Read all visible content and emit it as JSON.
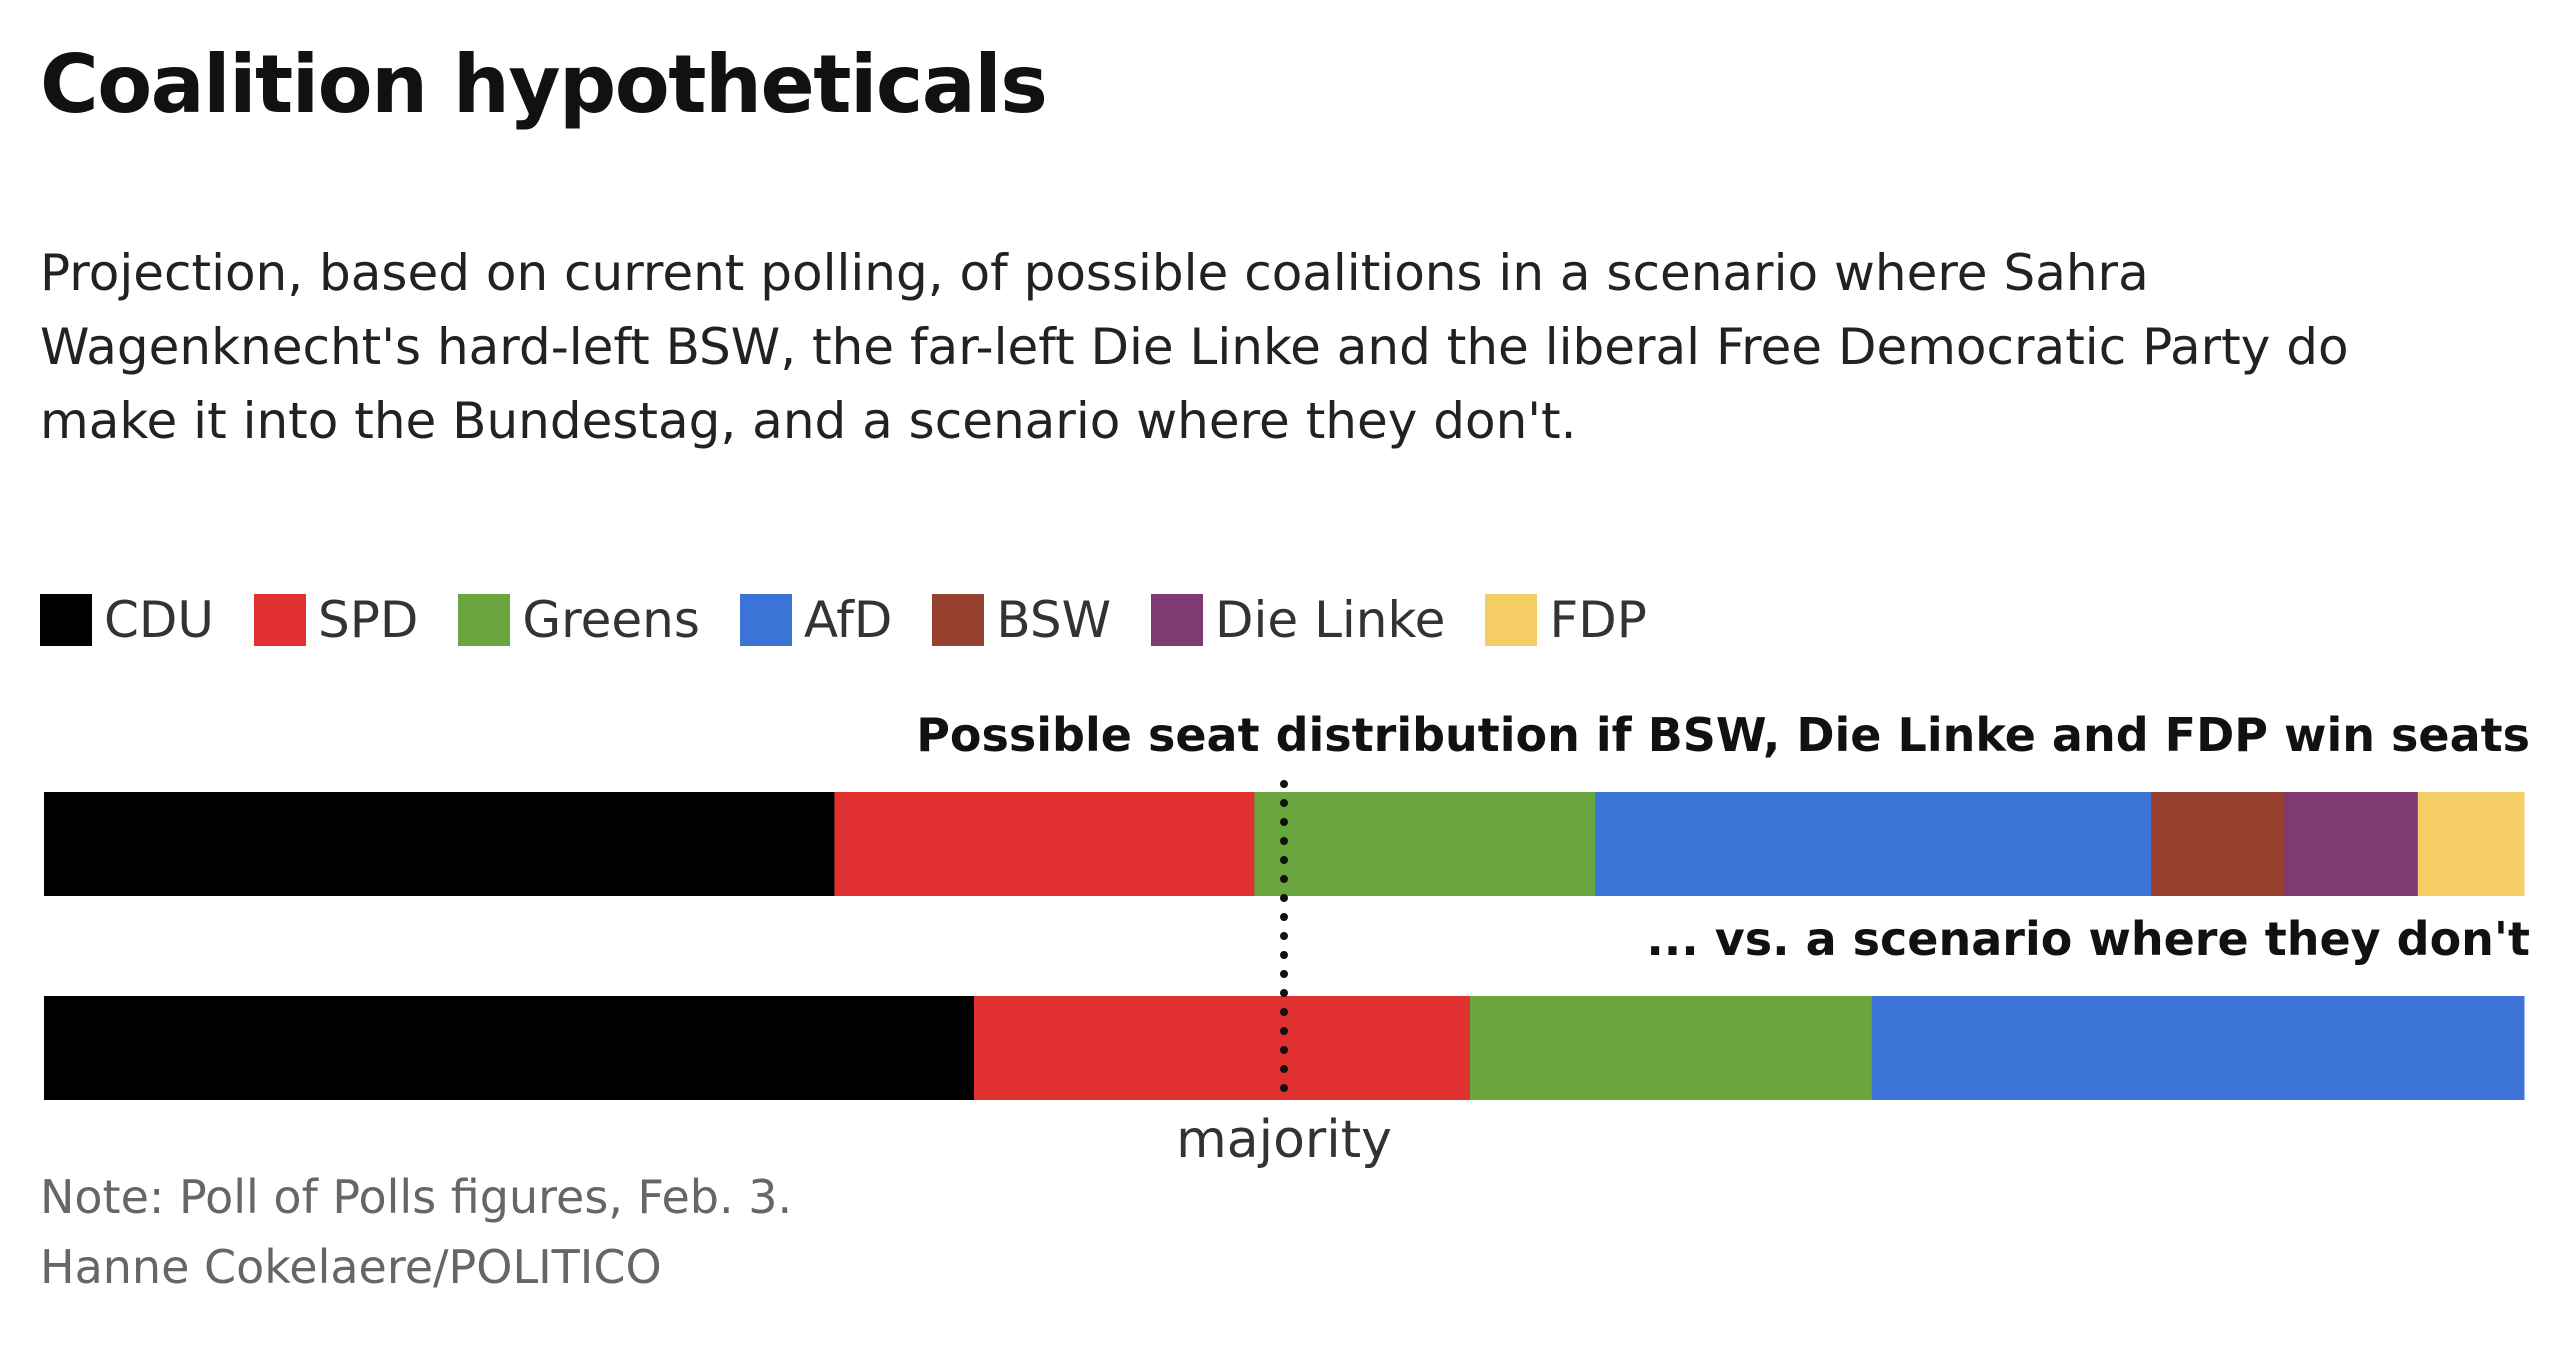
{
  "title": "Coalition hypotheticals",
  "subtitle": "Projection, based on current polling, of possible coalitions in a scenario where Sahra Wagenknecht's hard-left BSW, the far-left Die Linke and the liberal Free Democratic Party do make it into the Bundestag, and a scenario where they don't.",
  "legend": [
    {
      "label": "CDU",
      "color": "#000000"
    },
    {
      "label": "SPD",
      "color": "#e03030"
    },
    {
      "label": "Greens",
      "color": "#6aa63f"
    },
    {
      "label": "AfD",
      "color": "#3b74d6"
    },
    {
      "label": "BSW",
      "color": "#96412f"
    },
    {
      "label": "Die Linke",
      "color": "#7f3a73"
    },
    {
      "label": "FDP",
      "color": "#f4cd65"
    }
  ],
  "note": "Note: Poll of Polls figures, Feb. 3.",
  "credit": "Hanne Cokelaere/POLITICO",
  "chart_data": {
    "type": "bar",
    "orientation": "horizontal-stacked",
    "unit": "share of seats (%)",
    "total": 100,
    "majority_label": "majority",
    "majority_threshold": 50,
    "rows": [
      {
        "label": "Possible seat distribution if BSW, Die Linke and FDP win seats",
        "segments": [
          {
            "party": "CDU",
            "value": 32.0,
            "color": "#000000"
          },
          {
            "party": "SPD",
            "value": 17.0,
            "color": "#e03030"
          },
          {
            "party": "Greens",
            "value": 13.8,
            "color": "#6aa63f"
          },
          {
            "party": "AfD",
            "value": 22.5,
            "color": "#3b74d6"
          },
          {
            "party": "BSW",
            "value": 5.4,
            "color": "#96412f"
          },
          {
            "party": "Die Linke",
            "value": 5.4,
            "color": "#7f3a73"
          },
          {
            "party": "FDP",
            "value": 4.3,
            "color": "#f4cd65"
          }
        ]
      },
      {
        "label": "... vs. a scenario where they don't",
        "segments": [
          {
            "party": "CDU",
            "value": 37.5,
            "color": "#000000"
          },
          {
            "party": "SPD",
            "value": 20.0,
            "color": "#e03030"
          },
          {
            "party": "Greens",
            "value": 16.2,
            "color": "#6aa63f"
          },
          {
            "party": "AfD",
            "value": 26.3,
            "color": "#3b74d6"
          }
        ]
      }
    ]
  }
}
